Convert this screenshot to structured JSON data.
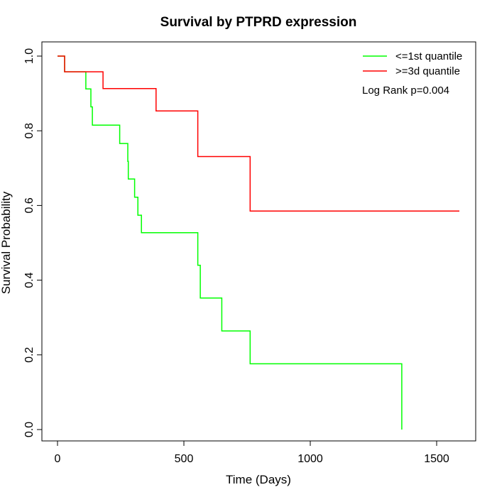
{
  "chart_data": {
    "type": "line",
    "subtype": "kaplan-meier step",
    "title": "Survival by PTPRD expression",
    "xlabel": "Time (Days)",
    "ylabel": "Survival Probability",
    "xlim": [
      0,
      1650
    ],
    "ylim": [
      0,
      1.0
    ],
    "xticks": [
      "0",
      "500",
      "1000",
      "1500"
    ],
    "xtick_values": [
      0,
      500,
      1000,
      1500
    ],
    "yticks": [
      "0.0",
      "0.2",
      "0.4",
      "0.6",
      "0.8",
      "1.0"
    ],
    "ytick_values": [
      0.0,
      0.2,
      0.4,
      0.6,
      0.8,
      1.0
    ],
    "grid": false,
    "legend_position": "top-right",
    "annotation": "Log Rank p=0.004",
    "series": [
      {
        "name": "<=1st quantile",
        "color": "#00ff00",
        "x": [
          0,
          28,
          28,
          112,
          112,
          132,
          132,
          138,
          138,
          246,
          246,
          278,
          278,
          280,
          280,
          305,
          305,
          318,
          318,
          332,
          332,
          555,
          555,
          565,
          565,
          650,
          650,
          762,
          762,
          1362,
          1362
        ],
        "y": [
          1.0,
          1.0,
          0.958,
          0.958,
          0.912,
          0.912,
          0.864,
          0.864,
          0.815,
          0.815,
          0.766,
          0.766,
          0.718,
          0.718,
          0.671,
          0.671,
          0.622,
          0.622,
          0.574,
          0.574,
          0.527,
          0.527,
          0.44,
          0.44,
          0.352,
          0.352,
          0.264,
          0.264,
          0.176,
          0.176,
          0.0
        ]
      },
      {
        "name": ">=3d quantile",
        "color": "#ff0000",
        "x": [
          0,
          28,
          28,
          180,
          180,
          390,
          390,
          555,
          555,
          762,
          762,
          1590
        ],
        "y": [
          1.0,
          1.0,
          0.958,
          0.958,
          0.913,
          0.913,
          0.853,
          0.853,
          0.731,
          0.731,
          0.585,
          0.585
        ]
      }
    ]
  }
}
